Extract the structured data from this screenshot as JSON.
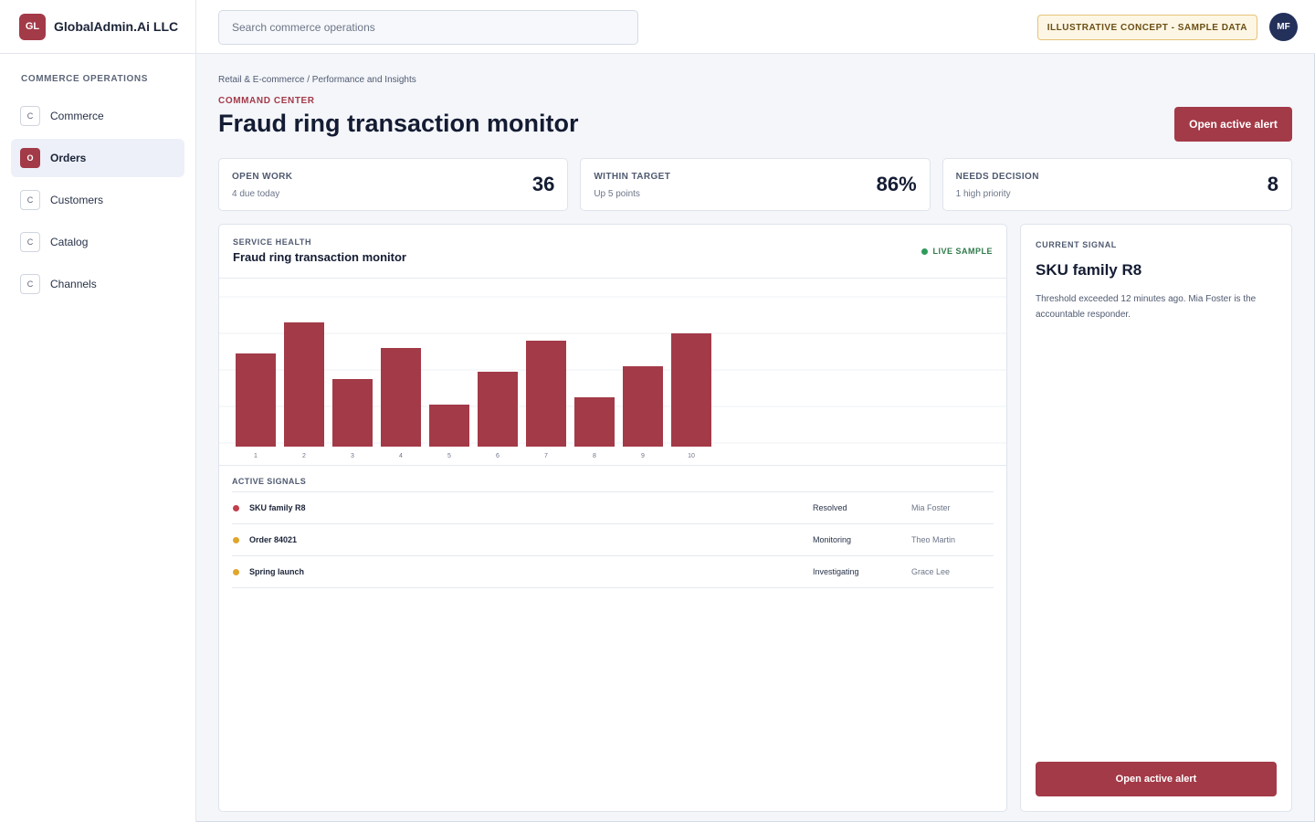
{
  "brand": {
    "logo": "GL",
    "name": "GlobalAdmin.Ai LLC"
  },
  "sidebar": {
    "section_label": "COMMERCE OPERATIONS",
    "items": [
      {
        "badge": "C",
        "label": "Commerce",
        "active": false
      },
      {
        "badge": "O",
        "label": "Orders",
        "active": true
      },
      {
        "badge": "C",
        "label": "Customers",
        "active": false
      },
      {
        "badge": "C",
        "label": "Catalog",
        "active": false
      },
      {
        "badge": "C",
        "label": "Channels",
        "active": false
      }
    ]
  },
  "topbar": {
    "search_placeholder": "Search commerce operations",
    "badge": "ILLUSTRATIVE CONCEPT - SAMPLE DATA",
    "avatar": "MF"
  },
  "header": {
    "breadcrumb": "Retail & E-commerce / Performance and Insights",
    "eyebrow": "COMMAND CENTER",
    "title": "Fraud ring transaction monitor",
    "action_label": "Open active alert"
  },
  "kpis": [
    {
      "label": "OPEN WORK",
      "sub": "4 due today",
      "value": "36"
    },
    {
      "label": "WITHIN TARGET",
      "sub": "Up 5 points",
      "value": "86%"
    },
    {
      "label": "NEEDS DECISION",
      "sub": "1 high priority",
      "value": "8"
    }
  ],
  "panel": {
    "eyebrow": "SERVICE HEALTH",
    "title": "Fraud ring transaction monitor",
    "live_label": "LIVE SAMPLE"
  },
  "chart_data": {
    "type": "bar",
    "categories": [
      "1",
      "2",
      "3",
      "4",
      "5",
      "6",
      "7",
      "8",
      "9",
      "10"
    ],
    "values": [
      51,
      68,
      37,
      54,
      23,
      41,
      58,
      27,
      44,
      62
    ],
    "ylim": [
      0,
      90
    ],
    "grid": true,
    "color": "#a33a48"
  },
  "signals": {
    "heading": "ACTIVE SIGNALS",
    "rows": [
      {
        "name": "SKU family R8",
        "status": "Resolved",
        "owner": "Mia Foster",
        "color": "#c0404c"
      },
      {
        "name": "Order 84021",
        "status": "Monitoring",
        "owner": "Theo Martin",
        "color": "#e0a52c"
      },
      {
        "name": "Spring launch",
        "status": "Investigating",
        "owner": "Grace Lee",
        "color": "#e0a52c"
      }
    ]
  },
  "current_signal": {
    "eyebrow": "CURRENT SIGNAL",
    "title": "SKU family R8",
    "description": "Threshold exceeded 12 minutes ago. Mia Foster is the accountable responder.",
    "action_label": "Open active alert"
  }
}
